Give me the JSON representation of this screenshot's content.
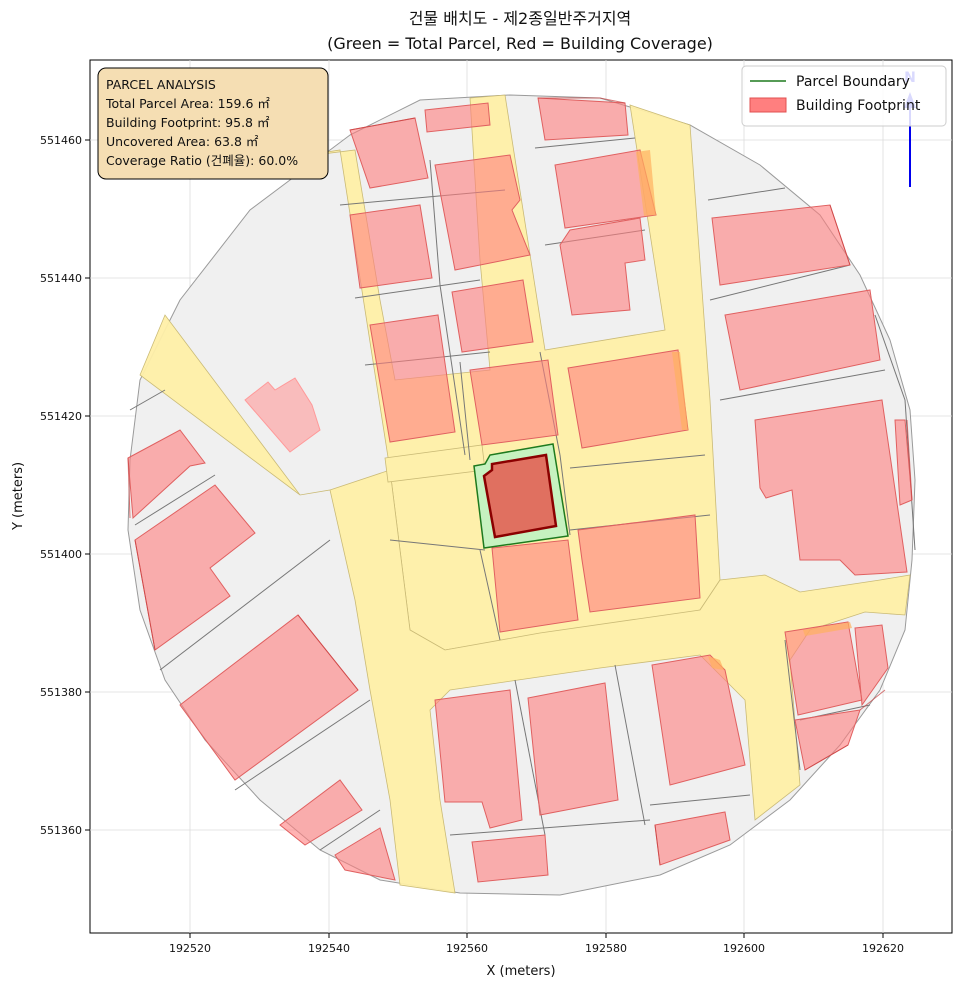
{
  "title": {
    "line1": "건물 배치도 - 제2종일반주거지역",
    "line2": "(Green = Total Parcel, Red = Building Coverage)"
  },
  "axes": {
    "xlabel": "X (meters)",
    "ylabel": "Y (meters)",
    "xticks": [
      "192520",
      "192540",
      "192560",
      "192580",
      "192600",
      "192620"
    ],
    "yticks": [
      "551460",
      "551440",
      "551420",
      "551400",
      "551380",
      "551360"
    ]
  },
  "info_box": {
    "heading": "PARCEL ANALYSIS",
    "total_area": "Total Parcel Area: 159.6 ㎡",
    "footprint": "Building Footprint: 95.8 ㎡",
    "uncovered": "Uncovered Area: 63.8 ㎡",
    "coverage": "Coverage Ratio (건폐율): 60.0%"
  },
  "legend": {
    "parcel_boundary": "Parcel Boundary",
    "building_footprint": "Building Footprint"
  },
  "north_arrow": {
    "label": "N"
  },
  "colors": {
    "parcel_green": "#1e7a1e",
    "parcel_fill": "#c6f2c0",
    "building_red": "#ff7f7f",
    "building_edge": "#8b0000",
    "road_yellow": "#fff0a8",
    "lot_gray": "#f0f0f0",
    "info_bg": "#f5deb3",
    "north_blue": "#0000ee"
  }
}
